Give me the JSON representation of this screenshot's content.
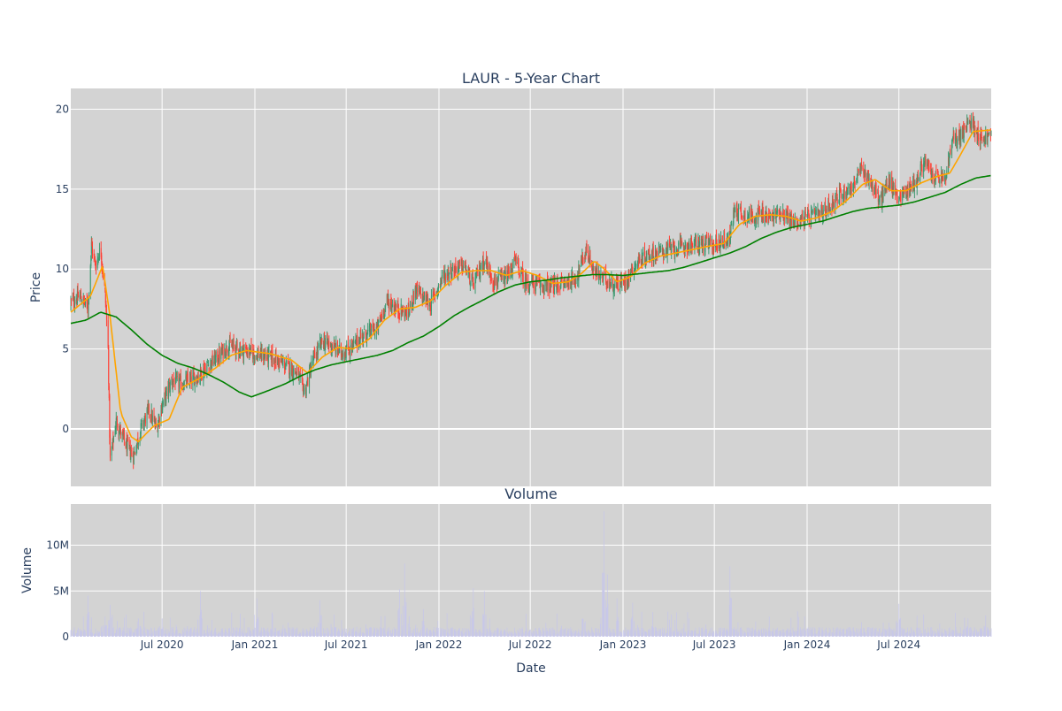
{
  "chart_data": [
    {
      "type": "candlestick",
      "title": "LAUR - 5-Year Chart",
      "ylabel": "Price",
      "ylim": [
        -3.6,
        21.3
      ],
      "yticks": [
        0,
        5,
        10,
        15,
        20
      ],
      "x_range": [
        "2020-01-02",
        "2024-12-31"
      ],
      "grid": true,
      "background": "#d3d3d3",
      "colors": {
        "up": "#3d9970",
        "down": "#ff4136",
        "ma_short": "#ffa500",
        "ma_long": "#008000"
      },
      "close_keypoints": [
        [
          "2020-01-02",
          7.9
        ],
        [
          "2020-01-20",
          8.3
        ],
        [
          "2020-02-05",
          7.6
        ],
        [
          "2020-02-12",
          11.5
        ],
        [
          "2020-02-20",
          10.2
        ],
        [
          "2020-03-01",
          11.3
        ],
        [
          "2020-03-10",
          8.5
        ],
        [
          "2020-03-16",
          5.0
        ],
        [
          "2020-03-20",
          -2.0
        ],
        [
          "2020-04-01",
          0.5
        ],
        [
          "2020-04-20",
          -1.0
        ],
        [
          "2020-05-05",
          -1.7
        ],
        [
          "2020-05-20",
          0.0
        ],
        [
          "2020-06-05",
          1.2
        ],
        [
          "2020-06-20",
          0.0
        ],
        [
          "2020-07-01",
          1.5
        ],
        [
          "2020-07-20",
          3.0
        ],
        [
          "2020-08-10",
          2.8
        ],
        [
          "2020-08-25",
          3.0
        ],
        [
          "2020-09-10",
          3.3
        ],
        [
          "2020-10-01",
          4.0
        ],
        [
          "2020-10-20",
          4.5
        ],
        [
          "2020-11-10",
          5.2
        ],
        [
          "2020-12-01",
          5.0
        ],
        [
          "2021-01-01",
          4.7
        ],
        [
          "2021-02-01",
          4.5
        ],
        [
          "2021-03-01",
          4.0
        ],
        [
          "2021-03-25",
          3.5
        ],
        [
          "2021-04-10",
          2.3
        ],
        [
          "2021-04-25",
          4.2
        ],
        [
          "2021-05-15",
          5.5
        ],
        [
          "2021-06-01",
          5.2
        ],
        [
          "2021-06-20",
          4.8
        ],
        [
          "2021-07-10",
          5.0
        ],
        [
          "2021-08-01",
          5.8
        ],
        [
          "2021-09-01",
          6.3
        ],
        [
          "2021-09-20",
          8.0
        ],
        [
          "2021-10-10",
          7.5
        ],
        [
          "2021-11-01",
          7.2
        ],
        [
          "2021-11-15",
          8.7
        ],
        [
          "2021-12-15",
          7.8
        ],
        [
          "2022-01-10",
          9.6
        ],
        [
          "2022-02-01",
          10.0
        ],
        [
          "2022-02-20",
          10.2
        ],
        [
          "2022-03-10",
          9.0
        ],
        [
          "2022-04-01",
          10.6
        ],
        [
          "2022-04-20",
          9.2
        ],
        [
          "2022-05-15",
          9.4
        ],
        [
          "2022-06-01",
          10.5
        ],
        [
          "2022-06-20",
          9.2
        ],
        [
          "2022-07-15",
          9.0
        ],
        [
          "2022-08-15",
          8.9
        ],
        [
          "2022-09-15",
          9.2
        ],
        [
          "2022-10-01",
          9.5
        ],
        [
          "2022-10-20",
          11.2
        ],
        [
          "2022-11-05",
          9.8
        ],
        [
          "2022-11-25",
          9.4
        ],
        [
          "2022-12-15",
          9.0
        ],
        [
          "2023-01-05",
          9.2
        ],
        [
          "2023-01-25",
          10.3
        ],
        [
          "2023-02-15",
          10.8
        ],
        [
          "2023-03-05",
          11.0
        ],
        [
          "2023-04-01",
          11.2
        ],
        [
          "2023-05-01",
          11.4
        ],
        [
          "2023-06-01",
          11.6
        ],
        [
          "2023-07-01",
          11.5
        ],
        [
          "2023-08-01",
          12.0
        ],
        [
          "2023-08-10",
          13.8
        ],
        [
          "2023-09-01",
          13.3
        ],
        [
          "2023-10-01",
          13.4
        ],
        [
          "2023-10-20",
          13.2
        ],
        [
          "2023-11-10",
          13.6
        ],
        [
          "2023-12-05",
          12.9
        ],
        [
          "2024-01-01",
          13.2
        ],
        [
          "2024-02-01",
          13.5
        ],
        [
          "2024-03-01",
          14.5
        ],
        [
          "2024-04-01",
          15.2
        ],
        [
          "2024-04-15",
          16.2
        ],
        [
          "2024-05-01",
          15.8
        ],
        [
          "2024-05-25",
          14.2
        ],
        [
          "2024-06-10",
          15.5
        ],
        [
          "2024-07-01",
          14.5
        ],
        [
          "2024-07-20",
          15.0
        ],
        [
          "2024-08-05",
          15.5
        ],
        [
          "2024-08-20",
          16.8
        ],
        [
          "2024-09-05",
          15.8
        ],
        [
          "2024-10-01",
          15.6
        ],
        [
          "2024-10-15",
          18.0
        ],
        [
          "2024-11-05",
          18.5
        ],
        [
          "2024-11-20",
          19.3
        ],
        [
          "2024-12-10",
          18.2
        ],
        [
          "2024-12-31",
          18.3
        ]
      ],
      "ma_short_keypoints": [
        [
          "2020-01-02",
          7.3
        ],
        [
          "2020-02-10",
          8.3
        ],
        [
          "2020-03-05",
          10.2
        ],
        [
          "2020-03-20",
          7.0
        ],
        [
          "2020-04-10",
          1.0
        ],
        [
          "2020-05-01",
          -0.5
        ],
        [
          "2020-05-15",
          -0.8
        ],
        [
          "2020-06-15",
          0.2
        ],
        [
          "2020-07-15",
          0.6
        ],
        [
          "2020-08-10",
          2.6
        ],
        [
          "2020-09-10",
          3.1
        ],
        [
          "2020-10-15",
          3.8
        ],
        [
          "2020-11-15",
          4.6
        ],
        [
          "2020-12-15",
          4.9
        ],
        [
          "2021-02-01",
          4.7
        ],
        [
          "2021-03-15",
          4.3
        ],
        [
          "2021-04-15",
          3.5
        ],
        [
          "2021-05-15",
          4.5
        ],
        [
          "2021-06-15",
          5.1
        ],
        [
          "2021-07-15",
          5.0
        ],
        [
          "2021-08-15",
          5.6
        ],
        [
          "2021-09-15",
          6.8
        ],
        [
          "2021-10-15",
          7.5
        ],
        [
          "2021-11-15",
          7.6
        ],
        [
          "2021-12-15",
          8.0
        ],
        [
          "2022-01-15",
          9.0
        ],
        [
          "2022-02-15",
          9.8
        ],
        [
          "2022-03-15",
          9.9
        ],
        [
          "2022-04-15",
          9.9
        ],
        [
          "2022-05-15",
          9.6
        ],
        [
          "2022-06-15",
          9.9
        ],
        [
          "2022-07-15",
          9.6
        ],
        [
          "2022-08-15",
          9.1
        ],
        [
          "2022-09-15",
          9.2
        ],
        [
          "2022-10-10",
          9.7
        ],
        [
          "2022-11-05",
          10.5
        ],
        [
          "2022-11-25",
          10.0
        ],
        [
          "2022-12-20",
          9.2
        ],
        [
          "2023-01-15",
          9.5
        ],
        [
          "2023-02-15",
          10.4
        ],
        [
          "2023-03-15",
          10.8
        ],
        [
          "2023-05-01",
          11.1
        ],
        [
          "2023-06-15",
          11.4
        ],
        [
          "2023-07-20",
          11.6
        ],
        [
          "2023-08-20",
          12.8
        ],
        [
          "2023-09-20",
          13.3
        ],
        [
          "2023-10-20",
          13.4
        ],
        [
          "2023-11-20",
          13.3
        ],
        [
          "2023-12-20",
          13.0
        ],
        [
          "2024-01-20",
          13.2
        ],
        [
          "2024-02-20",
          13.6
        ],
        [
          "2024-03-20",
          14.3
        ],
        [
          "2024-04-20",
          15.3
        ],
        [
          "2024-05-15",
          15.6
        ],
        [
          "2024-06-15",
          14.9
        ],
        [
          "2024-07-15",
          14.9
        ],
        [
          "2024-08-15",
          15.4
        ],
        [
          "2024-09-15",
          15.8
        ],
        [
          "2024-10-10",
          16.0
        ],
        [
          "2024-11-01",
          17.2
        ],
        [
          "2024-11-25",
          18.6
        ],
        [
          "2024-12-31",
          18.7
        ]
      ],
      "ma_long_keypoints": [
        [
          "2020-01-02",
          6.6
        ],
        [
          "2020-02-01",
          6.8
        ],
        [
          "2020-03-01",
          7.3
        ],
        [
          "2020-04-01",
          7.0
        ],
        [
          "2020-05-01",
          6.2
        ],
        [
          "2020-06-01",
          5.3
        ],
        [
          "2020-07-01",
          4.6
        ],
        [
          "2020-08-01",
          4.1
        ],
        [
          "2020-09-01",
          3.8
        ],
        [
          "2020-10-01",
          3.4
        ],
        [
          "2020-11-01",
          2.9
        ],
        [
          "2020-12-01",
          2.3
        ],
        [
          "2020-12-25",
          2.0
        ],
        [
          "2021-01-20",
          2.3
        ],
        [
          "2021-03-01",
          2.8
        ],
        [
          "2021-04-01",
          3.3
        ],
        [
          "2021-05-01",
          3.7
        ],
        [
          "2021-06-01",
          4.0
        ],
        [
          "2021-07-01",
          4.2
        ],
        [
          "2021-08-01",
          4.4
        ],
        [
          "2021-09-01",
          4.6
        ],
        [
          "2021-10-01",
          4.9
        ],
        [
          "2021-11-01",
          5.4
        ],
        [
          "2021-12-01",
          5.8
        ],
        [
          "2022-01-01",
          6.4
        ],
        [
          "2022-02-01",
          7.1
        ],
        [
          "2022-03-01",
          7.6
        ],
        [
          "2022-04-01",
          8.1
        ],
        [
          "2022-05-01",
          8.6
        ],
        [
          "2022-06-01",
          9.0
        ],
        [
          "2022-07-01",
          9.2
        ],
        [
          "2022-08-01",
          9.3
        ],
        [
          "2022-09-01",
          9.45
        ],
        [
          "2022-10-01",
          9.55
        ],
        [
          "2022-11-01",
          9.65
        ],
        [
          "2022-12-01",
          9.65
        ],
        [
          "2023-01-01",
          9.6
        ],
        [
          "2023-02-01",
          9.7
        ],
        [
          "2023-03-01",
          9.8
        ],
        [
          "2023-04-01",
          9.9
        ],
        [
          "2023-05-01",
          10.1
        ],
        [
          "2023-06-01",
          10.4
        ],
        [
          "2023-07-01",
          10.7
        ],
        [
          "2023-08-01",
          11.0
        ],
        [
          "2023-09-01",
          11.4
        ],
        [
          "2023-10-01",
          11.9
        ],
        [
          "2023-11-01",
          12.3
        ],
        [
          "2023-12-01",
          12.6
        ],
        [
          "2024-01-01",
          12.8
        ],
        [
          "2024-02-01",
          13.0
        ],
        [
          "2024-03-01",
          13.3
        ],
        [
          "2024-04-01",
          13.6
        ],
        [
          "2024-05-01",
          13.8
        ],
        [
          "2024-06-01",
          13.9
        ],
        [
          "2024-07-01",
          14.0
        ],
        [
          "2024-08-01",
          14.2
        ],
        [
          "2024-09-01",
          14.5
        ],
        [
          "2024-10-01",
          14.8
        ],
        [
          "2024-11-01",
          15.3
        ],
        [
          "2024-12-01",
          15.7
        ],
        [
          "2024-12-31",
          15.85
        ]
      ]
    },
    {
      "type": "bar",
      "title": "Volume",
      "xlabel": "Date",
      "ylabel": "Volume",
      "ylim": [
        0,
        14500000
      ],
      "yticks": [
        0,
        5000000,
        10000000
      ],
      "ytick_labels": [
        "0",
        "5M",
        "10M"
      ],
      "x_range": [
        "2020-01-02",
        "2024-12-31"
      ],
      "xticks": [
        "2020-07-01",
        "2021-01-01",
        "2021-07-01",
        "2022-01-01",
        "2022-07-01",
        "2023-01-01",
        "2023-07-01",
        "2024-01-01",
        "2024-07-01"
      ],
      "xtick_labels": [
        "Jul 2020",
        "Jan 2021",
        "Jul 2021",
        "Jan 2022",
        "Jul 2022",
        "Jan 2023",
        "Jul 2023",
        "Jan 2024",
        "Jul 2024"
      ],
      "grid": true,
      "background": "#d3d3d3",
      "bar_color": "#c6c6ea",
      "base_volume": 700000,
      "volume_spikes": [
        [
          "2020-02-05",
          4500000
        ],
        [
          "2020-03-10",
          2200000
        ],
        [
          "2020-03-20",
          3500000
        ],
        [
          "2020-05-15",
          2000000
        ],
        [
          "2020-07-01",
          2000000
        ],
        [
          "2020-09-15",
          5000000
        ],
        [
          "2021-01-05",
          4200000
        ],
        [
          "2021-05-10",
          4000000
        ],
        [
          "2021-10-15",
          5200000
        ],
        [
          "2021-10-25",
          8000000
        ],
        [
          "2021-12-01",
          3000000
        ],
        [
          "2022-03-10",
          5300000
        ],
        [
          "2022-04-01",
          5000000
        ],
        [
          "2022-08-01",
          1500000
        ],
        [
          "2022-09-01",
          1200000
        ],
        [
          "2022-10-15",
          3400000
        ],
        [
          "2022-11-20",
          3600000
        ],
        [
          "2022-11-24",
          13700000
        ],
        [
          "2022-12-01",
          6800000
        ],
        [
          "2022-12-20",
          4200000
        ],
        [
          "2023-01-20",
          3700000
        ],
        [
          "2023-03-01",
          2700000
        ],
        [
          "2023-08-01",
          7700000
        ],
        [
          "2024-07-01",
          3600000
        ],
        [
          "2024-11-15",
          2000000
        ],
        [
          "2024-12-20",
          2000000
        ]
      ]
    }
  ]
}
